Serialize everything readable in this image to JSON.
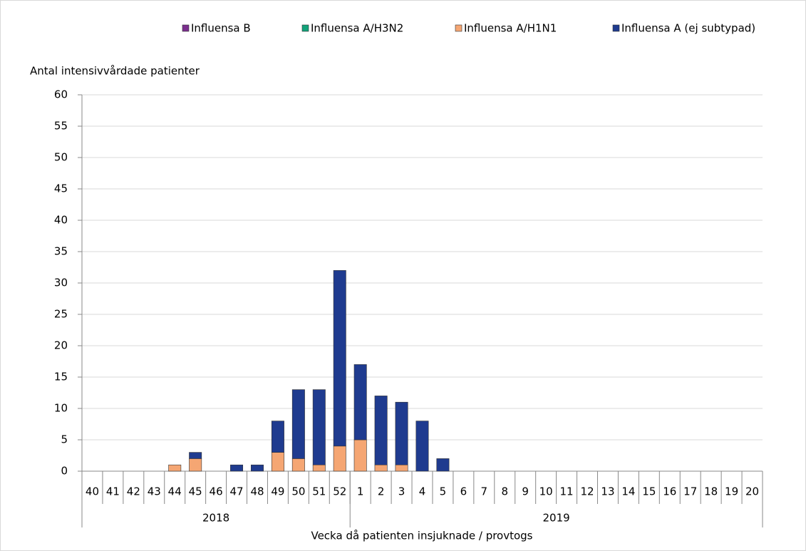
{
  "chart_data": {
    "type": "bar",
    "stacked": true,
    "y_label": "Antal intensivvårdade patienter",
    "x_label": "Vecka då patienten insjuknade / provtogs",
    "groups": [
      {
        "label": "2018",
        "categories": [
          "40",
          "41",
          "42",
          "43",
          "44",
          "45",
          "46",
          "47",
          "48",
          "49",
          "50",
          "51",
          "52"
        ]
      },
      {
        "label": "2019",
        "categories": [
          "1",
          "2",
          "3",
          "4",
          "5",
          "6",
          "7",
          "8",
          "9",
          "10",
          "11",
          "12",
          "13",
          "14",
          "15",
          "16",
          "17",
          "18",
          "19",
          "20"
        ]
      }
    ],
    "series": [
      {
        "name": "Influensa B",
        "color": "#7b2f8e",
        "values": [
          0,
          0,
          0,
          0,
          0,
          0,
          0,
          0,
          0,
          0,
          0,
          0,
          0,
          0,
          0,
          0,
          0,
          0,
          0,
          0,
          0,
          0,
          0,
          0,
          0,
          0,
          0,
          0,
          0,
          0,
          0,
          0,
          0
        ]
      },
      {
        "name": "Influensa A/H3N2",
        "color": "#12a37a",
        "values": [
          0,
          0,
          0,
          0,
          0,
          0,
          0,
          0,
          0,
          0,
          0,
          0,
          0,
          0,
          0,
          0,
          0,
          0,
          0,
          0,
          0,
          0,
          0,
          0,
          0,
          0,
          0,
          0,
          0,
          0,
          0,
          0,
          0
        ]
      },
      {
        "name": "Influensa A/H1N1",
        "color": "#f5a673",
        "values": [
          0,
          0,
          0,
          0,
          1,
          2,
          0,
          0,
          0,
          3,
          2,
          1,
          4,
          5,
          1,
          1,
          0,
          0,
          0,
          0,
          0,
          0,
          0,
          0,
          0,
          0,
          0,
          0,
          0,
          0,
          0,
          0,
          0
        ]
      },
      {
        "name": "Influensa A (ej subtypad)",
        "color": "#1f3b8f",
        "values": [
          0,
          0,
          0,
          0,
          0,
          1,
          0,
          1,
          1,
          5,
          11,
          12,
          28,
          12,
          11,
          10,
          8,
          2,
          0,
          0,
          0,
          0,
          0,
          0,
          0,
          0,
          0,
          0,
          0,
          0,
          0,
          0,
          0
        ]
      }
    ],
    "ylim": [
      0,
      60
    ],
    "yticks": [
      0,
      5,
      10,
      15,
      20,
      25,
      30,
      35,
      40,
      45,
      50,
      55,
      60
    ],
    "grid": true
  }
}
